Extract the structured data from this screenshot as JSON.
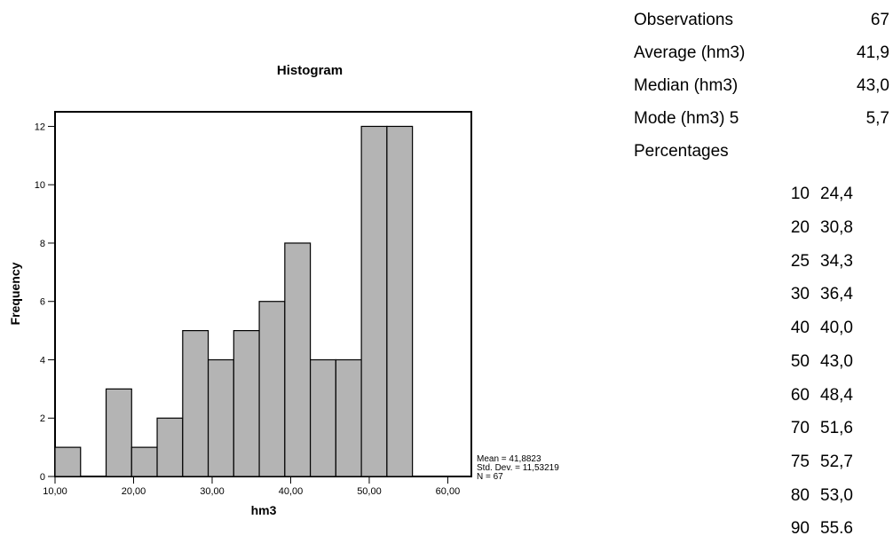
{
  "chart_data": {
    "type": "bar",
    "title": "Histogram",
    "xlabel": "hm3",
    "ylabel": "Frequency",
    "xlim": [
      10,
      63
    ],
    "ylim": [
      0,
      12.5
    ],
    "x_ticks": [
      "10,00",
      "20,00",
      "30,00",
      "40,00",
      "50,00",
      "60,00"
    ],
    "y_ticks": [
      "0",
      "2",
      "4",
      "6",
      "8",
      "10",
      "12"
    ],
    "bin_width": 3.25,
    "bins_start": [
      10,
      13.25,
      16.5,
      19.75,
      23,
      26.25,
      29.5,
      32.75,
      36,
      39.25,
      42.5,
      45.75,
      49,
      52.25,
      55.5
    ],
    "values": [
      1,
      0,
      3,
      1,
      2,
      5,
      4,
      5,
      6,
      8,
      4,
      4,
      12,
      12,
      0
    ],
    "annotations": [
      "Mean = 41,8823",
      "Std. Dev. = 11,53219",
      "N = 67"
    ],
    "bar_color": "#b4b4b4",
    "grid": false
  },
  "stats": {
    "rows": [
      {
        "label": "Observations",
        "value": "67"
      },
      {
        "label": "Average (hm3)",
        "value": "41,9"
      },
      {
        "label": "Median (hm3)",
        "value": "43,0"
      },
      {
        "label": "Mode (hm3) 5",
        "value": "5,7"
      },
      {
        "label": "Percentages",
        "value": ""
      }
    ],
    "percentages": [
      {
        "p": "10",
        "v": "24,4"
      },
      {
        "p": "20",
        "v": "30,8"
      },
      {
        "p": "25",
        "v": "34,3"
      },
      {
        "p": "30",
        "v": "36,4"
      },
      {
        "p": "40",
        "v": "40,0"
      },
      {
        "p": "50",
        "v": "43,0"
      },
      {
        "p": "60",
        "v": "48,4"
      },
      {
        "p": "70",
        "v": "51,6"
      },
      {
        "p": "75",
        "v": "52,7"
      },
      {
        "p": "80",
        "v": "53,0"
      },
      {
        "p": "90",
        "v": "55.6"
      }
    ]
  }
}
